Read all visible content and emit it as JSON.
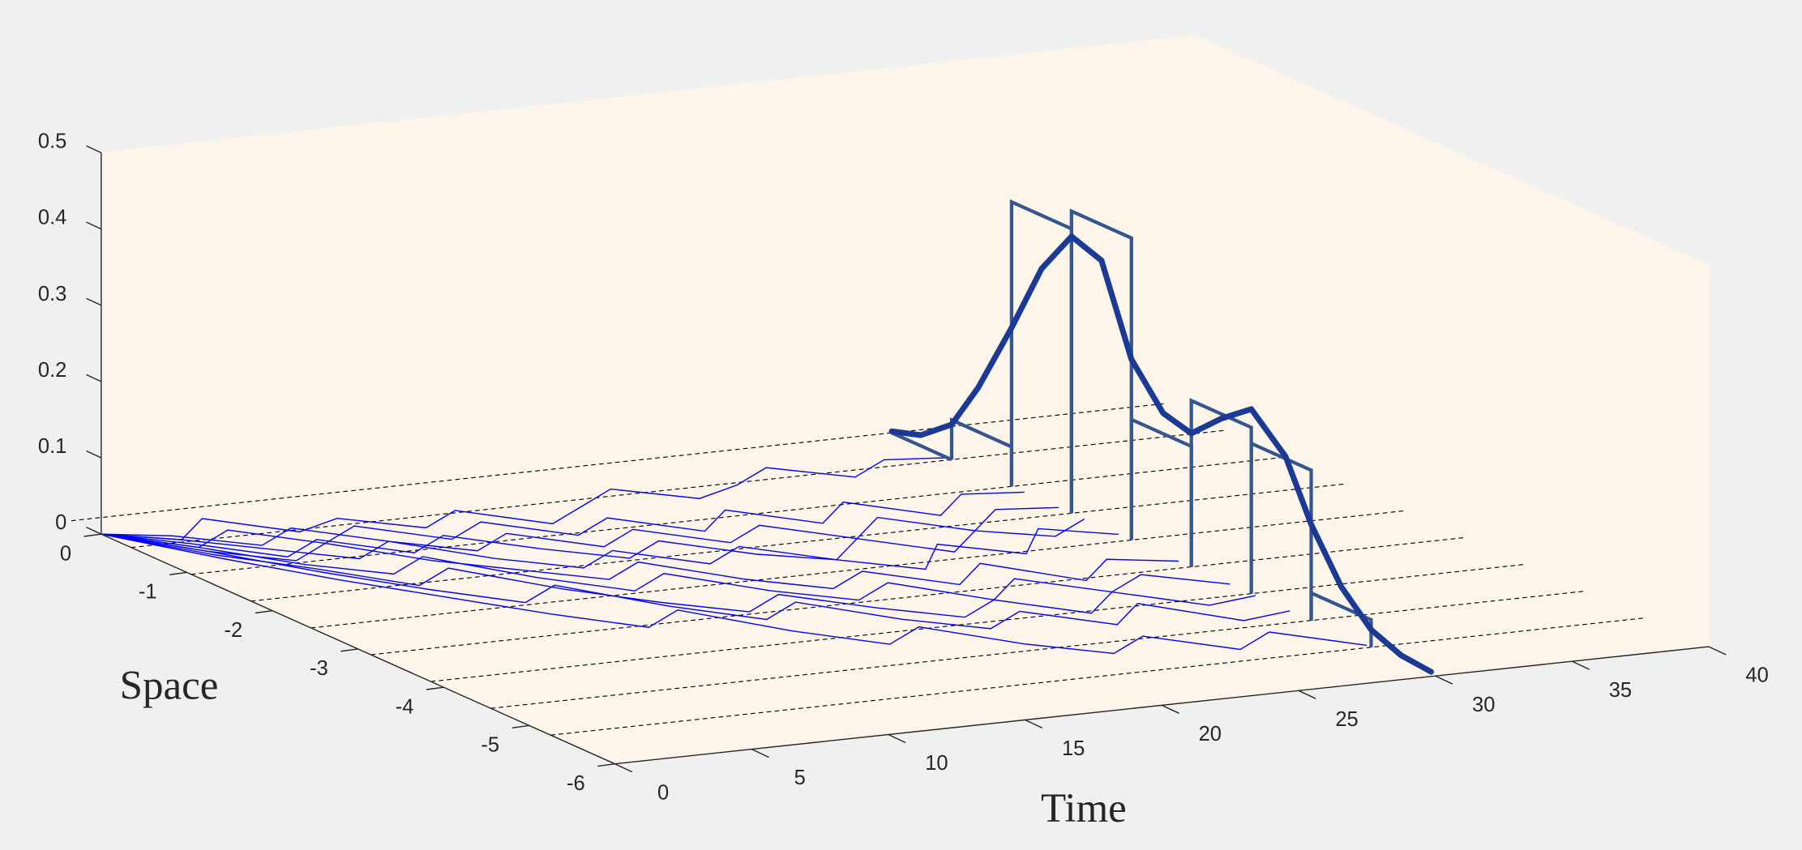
{
  "chart_data": {
    "type": "line3d",
    "xlabel": "Time",
    "ylabel": "Space",
    "xlim": [
      0,
      40
    ],
    "xticks": [
      0,
      5,
      10,
      15,
      20,
      25,
      30,
      35,
      40
    ],
    "ylim": [
      -6,
      0
    ],
    "yticks": [
      -6,
      -5,
      -4,
      -3,
      -2,
      -1,
      0
    ],
    "zlim": [
      0,
      0.5
    ],
    "zticks": [
      0,
      0.1,
      0.2,
      0.3,
      0.4,
      0.5
    ],
    "pane_color": "#fdf5e9",
    "x": [
      0,
      2,
      4,
      6,
      8,
      10,
      12,
      14,
      16,
      18,
      20,
      22,
      24,
      26,
      28,
      30
    ],
    "series": [
      {
        "color": "#0000ff",
        "values": [
          0,
          -0.3,
          0.1,
          -0.4,
          -0.2,
          -0.6,
          -0.3,
          -0.8,
          -0.5,
          -0.2,
          -0.6,
          -0.4,
          -0.1,
          -0.5,
          -0.2,
          -0.3
        ]
      },
      {
        "color": "#0000ff",
        "values": [
          0,
          -0.5,
          -0.2,
          -0.7,
          -0.4,
          -0.9,
          -0.6,
          -1.1,
          -0.8,
          -1.3,
          -0.9,
          -1.4,
          -1.0,
          -1.5,
          -1.1,
          -1.2
        ]
      },
      {
        "color": "#0000ff",
        "values": [
          0,
          -0.2,
          -0.6,
          -0.3,
          -0.8,
          -1.2,
          -0.9,
          -1.4,
          -1.1,
          -1.6,
          -1.3,
          -1.8,
          -1.4,
          -1.9,
          -1.5,
          -1.6
        ]
      },
      {
        "color": "#0000ff",
        "values": [
          0,
          -0.4,
          -0.9,
          -0.6,
          -1.1,
          -0.8,
          -1.3,
          -1.7,
          -1.4,
          -1.9,
          -2.2,
          -1.8,
          -2.3,
          -1.9,
          -2.2,
          -1.9
        ]
      },
      {
        "color": "#0000ff",
        "values": [
          0,
          -0.3,
          -0.7,
          -1.1,
          -0.8,
          -1.4,
          -1.8,
          -1.5,
          -2.0,
          -1.7,
          -2.2,
          -2.6,
          -2.1,
          -2.5,
          -2.0,
          -2.3
        ]
      },
      {
        "color": "#0000ff",
        "values": [
          0,
          -0.6,
          -1.0,
          -0.7,
          -1.3,
          -1.7,
          -2.1,
          -1.8,
          -2.4,
          -2.8,
          -2.5,
          -3.0,
          -2.6,
          -3.2,
          -2.8,
          -3.0
        ]
      },
      {
        "color": "#0000ff",
        "values": [
          0,
          -0.5,
          -1.1,
          -1.5,
          -1.2,
          -1.9,
          -2.4,
          -2.1,
          -2.7,
          -3.1,
          -2.8,
          -3.4,
          -3.0,
          -3.5,
          -3.2,
          -3.6
        ]
      },
      {
        "color": "#0000ff",
        "values": [
          0,
          -0.7,
          -1.2,
          -1.8,
          -1.5,
          -2.2,
          -2.7,
          -3.1,
          -2.8,
          -3.3,
          -3.7,
          -3.4,
          -3.9,
          -3.5,
          -4.0,
          -3.9
        ]
      },
      {
        "color": "#0000ff",
        "values": [
          0,
          -0.6,
          -1.3,
          -1.9,
          -2.4,
          -2.1,
          -2.8,
          -3.3,
          -3.0,
          -3.6,
          -4.0,
          -3.7,
          -4.2,
          -3.8,
          -4.4,
          -4.3
        ]
      },
      {
        "color": "#0000ff",
        "values": [
          0,
          -0.8,
          -1.5,
          -2.1,
          -2.7,
          -3.2,
          -2.9,
          -3.6,
          -4.1,
          -3.8,
          -4.4,
          -4.8,
          -4.5,
          -5.0,
          -4.7,
          -5.2
        ]
      }
    ],
    "histogram": {
      "time": 30,
      "color": "#35578f",
      "bins": [
        0.35,
        -0.35,
        -1.05,
        -1.75,
        -2.45,
        -3.15,
        -3.85,
        -4.55,
        -5.25
      ],
      "counts": [
        0,
        0.052,
        0.373,
        0.396,
        0.158,
        0.218,
        0.197,
        0.036
      ]
    },
    "density": {
      "time": 30,
      "color": "#1a3a96",
      "space": [
        0.35,
        0.01,
        -0.35,
        -0.66,
        -1.05,
        -1.4,
        -1.75,
        -2.1,
        -2.45,
        -2.82,
        -3.15,
        -3.5,
        -3.85,
        -4.25,
        -4.55,
        -4.9,
        -5.25,
        -5.6,
        -5.95
      ],
      "values": [
        0.002,
        0.014,
        0.046,
        0.11,
        0.208,
        0.303,
        0.363,
        0.349,
        0.237,
        0.185,
        0.175,
        0.212,
        0.242,
        0.2,
        0.126,
        0.062,
        0.023,
        0.007,
        0.003
      ]
    }
  }
}
